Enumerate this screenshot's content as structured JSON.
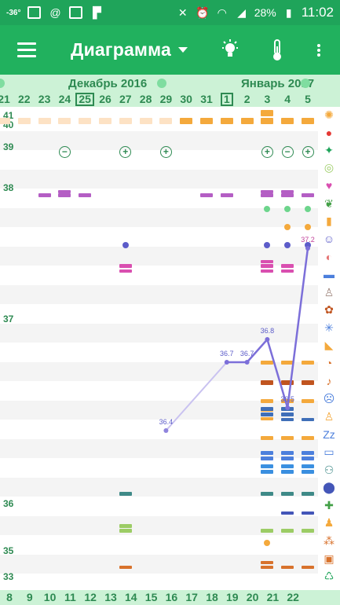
{
  "status_bar": {
    "temperature": "-36°",
    "battery": "28%",
    "time": "11:02",
    "icons": [
      "app-icon",
      "at-icon",
      "calendar-icon",
      "flipboard-icon",
      "mute-icon",
      "alarm-icon",
      "wifi-icon",
      "signal-icon",
      "battery-icon"
    ]
  },
  "toolbar": {
    "title": "Диаграмма",
    "icons": [
      "menu-icon",
      "bulb-icon",
      "thermometer-icon",
      "more-icon"
    ]
  },
  "months": [
    "Декабрь 2016",
    "Январь 2017"
  ],
  "dates_top": [
    "21",
    "22",
    "23",
    "24",
    "25",
    "26",
    "27",
    "28",
    "29",
    "30",
    "31",
    "1",
    "2",
    "3",
    "4",
    "5"
  ],
  "dates_bottom": [
    "8",
    "9",
    "10",
    "11",
    "12",
    "13",
    "14",
    "15",
    "16",
    "17",
    "18",
    "19",
    "20",
    "21",
    "22"
  ],
  "y_labels": [
    "41",
    "40",
    "39",
    "38",
    "37",
    "36",
    "35",
    "33"
  ],
  "chart_data": {
    "type": "line",
    "x": [
      "29",
      "1",
      "2",
      "3",
      "4",
      "5"
    ],
    "values": [
      36.4,
      36.7,
      36.7,
      36.8,
      36.5,
      37.2
    ],
    "data_labels": [
      "36.4",
      "36.7",
      "36.7",
      "36.8",
      "36.5",
      "37.2"
    ],
    "ylabel": "",
    "colors": {
      "line": "#7c6fd9",
      "line_faded": "#c9c2f0"
    }
  },
  "side_icons": [
    "sun-icon",
    "drop-icon",
    "bird-icon",
    "rings-icon",
    "heart-icon",
    "leaf-icon",
    "bottle-icon",
    "smiley-icon",
    "head-icon",
    "document-icon",
    "person-icon",
    "virus-icon",
    "sparkle-icon",
    "boot-icon",
    "pill-icon",
    "ear-icon",
    "sad-face-icon",
    "person-small-icon",
    "sleep-icon",
    "cake-icon",
    "couple-icon",
    "pin-icon",
    "first-aid-icon",
    "baby-icon",
    "dots-icon",
    "monitor-icon",
    "recycle-icon"
  ],
  "colors": {
    "green": "#2e8a52",
    "orange": "#f4a93c",
    "pink": "#d94fb0",
    "purple": "#b45ec4",
    "blue": "#4c7fdc",
    "teal": "#3f8a88"
  }
}
